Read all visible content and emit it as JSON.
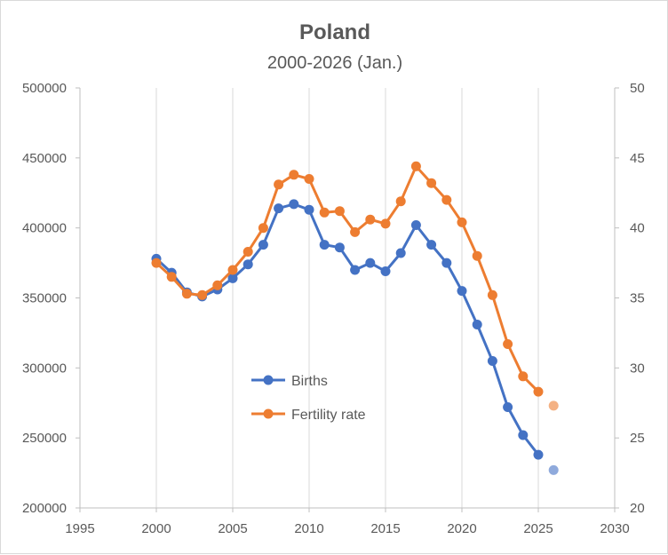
{
  "chart_data": {
    "type": "scatter",
    "title": "Poland",
    "subtitle": "2000-2026 (Jan.)",
    "xlabel": "",
    "ylabel": "",
    "y2label": "",
    "xlim": [
      1995,
      2030
    ],
    "ylim": [
      200000,
      500000
    ],
    "y2lim": [
      20,
      50
    ],
    "x_ticks": [
      1995,
      2000,
      2005,
      2010,
      2015,
      2020,
      2025,
      2030
    ],
    "y_ticks": [
      200000,
      250000,
      300000,
      350000,
      400000,
      450000,
      500000
    ],
    "y2_ticks": [
      20,
      25,
      30,
      35,
      40,
      45,
      50
    ],
    "grid": "vertical",
    "legend_position": "center-left",
    "series": [
      {
        "name": "Births",
        "axis": "left",
        "color": "#4472c4",
        "x": [
          2000,
          2001,
          2002,
          2003,
          2004,
          2005,
          2006,
          2007,
          2008,
          2009,
          2010,
          2011,
          2012,
          2013,
          2014,
          2015,
          2016,
          2017,
          2018,
          2019,
          2020,
          2021,
          2022,
          2023,
          2024,
          2025,
          2026
        ],
        "values": [
          378000,
          368000,
          354000,
          351000,
          356000,
          364000,
          374000,
          388000,
          414000,
          417000,
          413000,
          388000,
          386000,
          370000,
          375000,
          369000,
          382000,
          402000,
          388000,
          375000,
          355000,
          331000,
          305000,
          272000,
          252000,
          238000,
          227000
        ],
        "highlight_last": true
      },
      {
        "name": "Fertility rate",
        "axis": "right",
        "color": "#ed7d31",
        "x": [
          2000,
          2001,
          2002,
          2003,
          2004,
          2005,
          2006,
          2007,
          2008,
          2009,
          2010,
          2011,
          2012,
          2013,
          2014,
          2015,
          2016,
          2017,
          2018,
          2019,
          2020,
          2021,
          2022,
          2023,
          2024,
          2025,
          2026
        ],
        "values": [
          37.5,
          36.5,
          35.3,
          35.2,
          35.9,
          37.0,
          38.3,
          40.0,
          43.1,
          43.8,
          43.5,
          41.1,
          41.2,
          39.7,
          40.6,
          40.3,
          41.9,
          44.4,
          43.2,
          42.0,
          40.4,
          38.0,
          35.2,
          31.7,
          29.4,
          28.3,
          27.3
        ],
        "highlight_last": true
      }
    ]
  }
}
